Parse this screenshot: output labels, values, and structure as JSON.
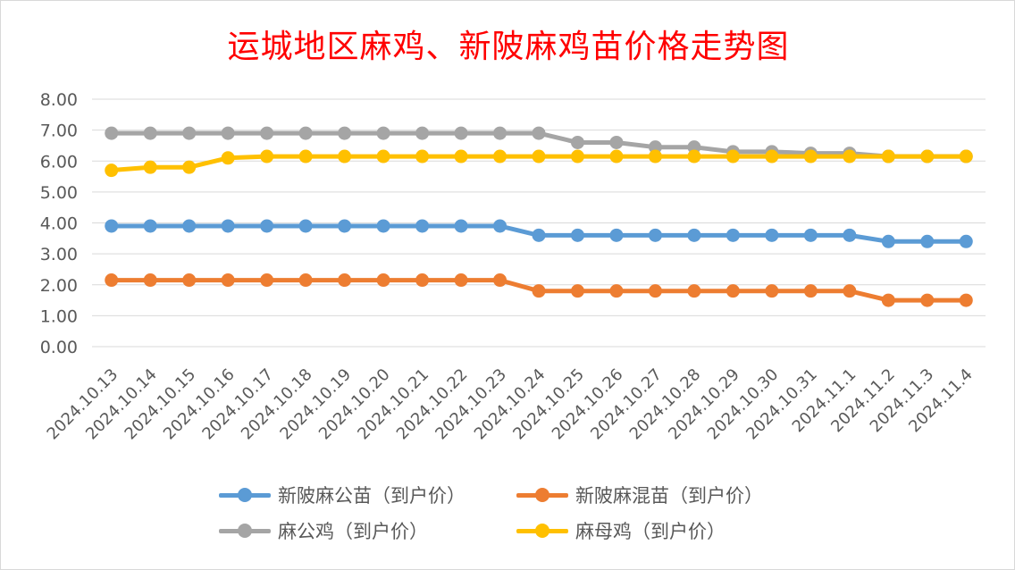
{
  "chart_data": {
    "type": "line",
    "title": "运城地区麻鸡、新陂麻鸡苗价格走势图",
    "xlabel": "",
    "ylabel": "",
    "ylim": [
      0,
      8
    ],
    "y_ticks": [
      "0.00",
      "1.00",
      "2.00",
      "3.00",
      "4.00",
      "5.00",
      "6.00",
      "7.00",
      "8.00"
    ],
    "grid": "horizontal",
    "legend_position": "bottom",
    "categories": [
      "2024.10.13",
      "2024.10.14",
      "2024.10.15",
      "2024.10.16",
      "2024.10.17",
      "2024.10.18",
      "2024.10.19",
      "2024.10.20",
      "2024.10.21",
      "2024.10.22",
      "2024.10.23",
      "2024.10.24",
      "2024.10.25",
      "2024.10.26",
      "2024.10.27",
      "2024.10.28",
      "2024.10.29",
      "2024.10.30",
      "2024.10.31",
      "2024.11.1",
      "2024.11.2",
      "2024.11.3",
      "2024.11.4"
    ],
    "series": [
      {
        "name": "新陂麻公苗（到户价）",
        "color": "#5b9bd5",
        "values": [
          3.9,
          3.9,
          3.9,
          3.9,
          3.9,
          3.9,
          3.9,
          3.9,
          3.9,
          3.9,
          3.9,
          3.6,
          3.6,
          3.6,
          3.6,
          3.6,
          3.6,
          3.6,
          3.6,
          3.6,
          3.4,
          3.4,
          3.4
        ]
      },
      {
        "name": "新陂麻混苗（到户价）",
        "color": "#ed7d31",
        "values": [
          2.15,
          2.15,
          2.15,
          2.15,
          2.15,
          2.15,
          2.15,
          2.15,
          2.15,
          2.15,
          2.15,
          1.8,
          1.8,
          1.8,
          1.8,
          1.8,
          1.8,
          1.8,
          1.8,
          1.8,
          1.5,
          1.5,
          1.5
        ]
      },
      {
        "name": "麻公鸡（到户价）",
        "color": "#a5a5a5",
        "values": [
          6.9,
          6.9,
          6.9,
          6.9,
          6.9,
          6.9,
          6.9,
          6.9,
          6.9,
          6.9,
          6.9,
          6.9,
          6.6,
          6.6,
          6.45,
          6.45,
          6.3,
          6.3,
          6.25,
          6.25,
          6.15,
          6.15,
          6.15
        ]
      },
      {
        "name": "麻母鸡（到户价）",
        "color": "#ffc000",
        "values": [
          5.7,
          5.8,
          5.8,
          6.1,
          6.15,
          6.15,
          6.15,
          6.15,
          6.15,
          6.15,
          6.15,
          6.15,
          6.15,
          6.15,
          6.15,
          6.15,
          6.15,
          6.15,
          6.15,
          6.15,
          6.15,
          6.15,
          6.15
        ]
      }
    ],
    "legend_order": [
      0,
      1,
      2,
      3
    ]
  }
}
